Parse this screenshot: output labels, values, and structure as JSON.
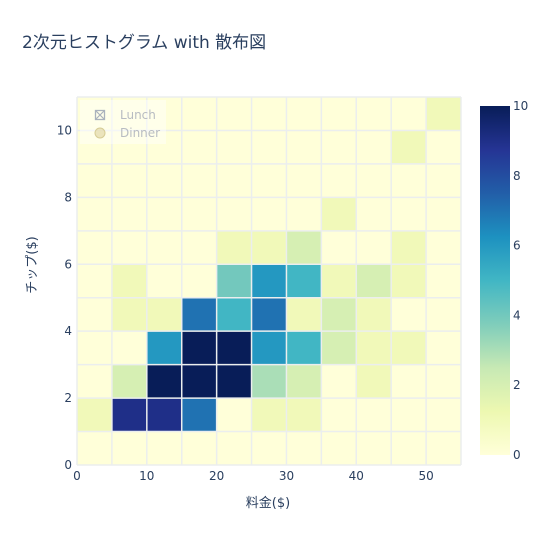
{
  "chart_data": {
    "type": "heatmap",
    "title": "2次元ヒストグラム with 散布図",
    "xlabel": "料金($)",
    "ylabel": "チップ($)",
    "xlim": [
      0,
      55
    ],
    "ylim": [
      0,
      11
    ],
    "x_ticks": [
      "0",
      "10",
      "20",
      "30",
      "40",
      "50"
    ],
    "y_ticks": [
      "0",
      "2",
      "4",
      "6",
      "8",
      "10"
    ],
    "x_bin_edges": [
      0,
      5,
      10,
      15,
      20,
      25,
      30,
      35,
      40,
      45,
      50,
      55
    ],
    "y_bin_edges": [
      0,
      1,
      2,
      3,
      4,
      5,
      6,
      7,
      8,
      9,
      10,
      11
    ],
    "counts": [
      [
        0,
        0,
        0,
        0,
        0,
        0,
        0,
        0,
        0,
        0,
        0
      ],
      [
        1,
        9,
        9,
        7,
        0,
        1,
        1,
        0,
        0,
        0,
        0
      ],
      [
        0,
        2,
        10,
        10,
        10,
        3,
        2,
        0,
        1,
        0,
        0
      ],
      [
        0,
        0,
        6,
        10,
        10,
        6,
        5,
        2,
        1,
        1,
        0
      ],
      [
        0,
        1,
        1,
        7,
        5,
        7,
        1,
        2,
        1,
        0,
        0
      ],
      [
        0,
        1,
        0,
        0,
        4,
        6,
        5,
        1,
        2,
        1,
        0
      ],
      [
        0,
        0,
        0,
        0,
        1,
        1,
        2,
        0,
        0,
        1,
        0
      ],
      [
        0,
        0,
        0,
        0,
        0,
        0,
        0,
        1,
        0,
        0,
        0
      ],
      [
        0,
        0,
        0,
        0,
        0,
        0,
        0,
        0,
        0,
        0,
        0
      ],
      [
        0,
        0,
        0,
        0,
        0,
        0,
        0,
        0,
        0,
        1,
        0
      ],
      [
        0,
        0,
        0,
        0,
        0,
        0,
        0,
        0,
        0,
        0,
        1
      ]
    ],
    "colorscale": {
      "min": 0,
      "max": 10,
      "ticks": [
        "0",
        "2",
        "4",
        "6",
        "8",
        "10"
      ],
      "stops": [
        "#ffffd9",
        "#edf8b1",
        "#c7e9b4",
        "#7fcdbb",
        "#41b6c4",
        "#1d91c0",
        "#225ea8",
        "#253494",
        "#081d58"
      ]
    },
    "legend": {
      "position": "top-left",
      "entries": [
        {
          "name": "Lunch",
          "symbol": "square-x-open",
          "color": "#aab2bd"
        },
        {
          "name": "Dinner",
          "symbol": "circle",
          "color": "#e3d9a8"
        }
      ]
    },
    "grid": true
  }
}
